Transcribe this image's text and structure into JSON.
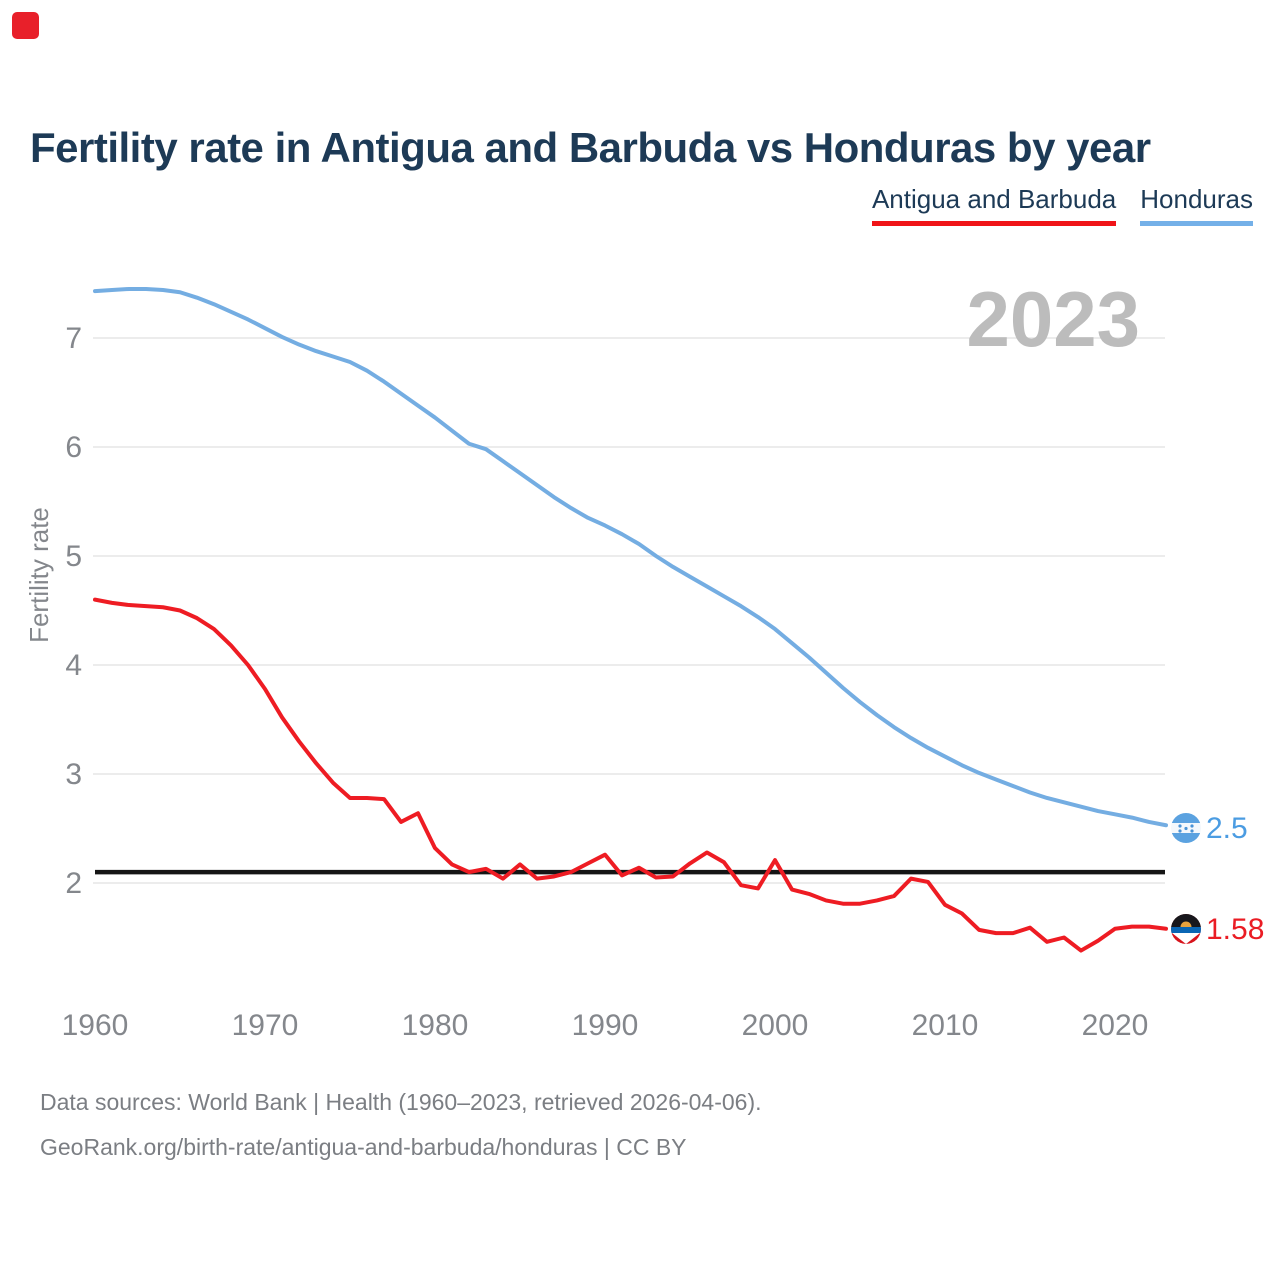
{
  "brand": {
    "color": "#e8202a"
  },
  "header": {
    "title": "Fertility rate in Antigua and Barbuda vs Honduras by year"
  },
  "legend": [
    {
      "label": "Antigua and Barbuda",
      "color": "#f01418"
    },
    {
      "label": "Honduras",
      "color": "#74b0e8"
    }
  ],
  "watermark": "2023",
  "chart_data": {
    "type": "line",
    "title": "Fertility rate in Antigua and Barbuda vs Honduras by year",
    "xlabel": "",
    "ylabel": "Fertility rate",
    "ylim": [
      1.3,
      7.6
    ],
    "xlim": [
      1960,
      2023
    ],
    "grid": "horizontal",
    "legend_position": "top-right",
    "yticks": [
      2,
      3,
      4,
      5,
      6,
      7
    ],
    "xticks": [
      1960,
      1970,
      1980,
      1990,
      2000,
      2010,
      2020
    ],
    "threshold": {
      "value": 2.1,
      "color": "#151515"
    },
    "x": [
      1960,
      1961,
      1962,
      1963,
      1964,
      1965,
      1966,
      1967,
      1968,
      1969,
      1970,
      1971,
      1972,
      1973,
      1974,
      1975,
      1976,
      1977,
      1978,
      1979,
      1980,
      1981,
      1982,
      1983,
      1984,
      1985,
      1986,
      1987,
      1988,
      1989,
      1990,
      1991,
      1992,
      1993,
      1994,
      1995,
      1996,
      1997,
      1998,
      1999,
      2000,
      2001,
      2002,
      2003,
      2004,
      2005,
      2006,
      2007,
      2008,
      2009,
      2010,
      2011,
      2012,
      2013,
      2014,
      2015,
      2016,
      2017,
      2018,
      2019,
      2020,
      2021,
      2022,
      2023
    ],
    "series": [
      {
        "name": "Antigua and Barbuda",
        "color": "#ee1c23",
        "end_label": "1.58",
        "end_label_color": "#ea1c24",
        "values": [
          4.6,
          4.57,
          4.55,
          4.54,
          4.53,
          4.5,
          4.43,
          4.33,
          4.18,
          4.0,
          3.78,
          3.52,
          3.3,
          3.1,
          2.92,
          2.78,
          2.78,
          2.77,
          2.56,
          2.64,
          2.32,
          2.17,
          2.1,
          2.13,
          2.04,
          2.17,
          2.04,
          2.06,
          2.1,
          2.18,
          2.26,
          2.07,
          2.14,
          2.05,
          2.06,
          2.18,
          2.28,
          2.19,
          1.98,
          1.95,
          2.21,
          1.94,
          1.9,
          1.84,
          1.81,
          1.81,
          1.84,
          1.88,
          2.04,
          2.01,
          1.8,
          1.72,
          1.57,
          1.54,
          1.54,
          1.59,
          1.46,
          1.5,
          1.38,
          1.47,
          1.58,
          1.6,
          1.6,
          1.58
        ]
      },
      {
        "name": "Honduras",
        "color": "#74ade2",
        "end_label": "2.5",
        "end_label_color": "#4b9ce2",
        "values": [
          7.43,
          7.44,
          7.45,
          7.45,
          7.44,
          7.42,
          7.37,
          7.31,
          7.24,
          7.17,
          7.09,
          7.01,
          6.94,
          6.88,
          6.83,
          6.78,
          6.7,
          6.6,
          6.49,
          6.38,
          6.27,
          6.15,
          6.03,
          5.98,
          5.87,
          5.76,
          5.65,
          5.54,
          5.44,
          5.35,
          5.28,
          5.2,
          5.11,
          5.0,
          4.9,
          4.81,
          4.72,
          4.63,
          4.54,
          4.44,
          4.33,
          4.2,
          4.07,
          3.93,
          3.79,
          3.66,
          3.54,
          3.43,
          3.33,
          3.24,
          3.16,
          3.08,
          3.01,
          2.95,
          2.89,
          2.83,
          2.78,
          2.74,
          2.7,
          2.66,
          2.63,
          2.6,
          2.56,
          2.53
        ]
      }
    ]
  },
  "footer": {
    "line1": "Data sources: World Bank | Health (1960–2023, retrieved 2026-04-06).",
    "line2": "GeoRank.org/birth-rate/antigua-and-barbuda/honduras | CC BY"
  }
}
